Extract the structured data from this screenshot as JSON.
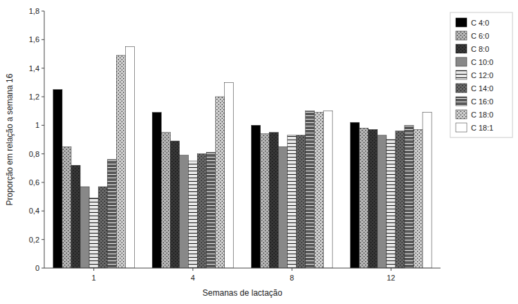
{
  "chart_data": {
    "type": "bar",
    "xlabel": "Semanas de lactação",
    "ylabel": "Proporção em relação a semana 16",
    "categories": [
      "1",
      "4",
      "8",
      "12"
    ],
    "series": [
      {
        "name": "C 4:0",
        "color": "#000000",
        "values": [
          1.25,
          1.09,
          1.0,
          1.02
        ]
      },
      {
        "name": "C 6:0",
        "color": "#b8b8b8",
        "values": [
          0.85,
          0.95,
          0.94,
          0.98
        ]
      },
      {
        "name": "C 8:0",
        "color": "#383838",
        "values": [
          0.72,
          0.89,
          0.95,
          0.97
        ]
      },
      {
        "name": "C 10:0",
        "color": "#888888",
        "values": [
          0.57,
          0.79,
          0.85,
          0.93
        ]
      },
      {
        "name": "C 12:0",
        "color": "#e8e8e8",
        "values": [
          0.49,
          0.75,
          0.93,
          0.9
        ]
      },
      {
        "name": "C 14:0",
        "color": "#686868",
        "values": [
          0.57,
          0.8,
          0.93,
          0.96
        ]
      },
      {
        "name": "C 16:0",
        "color": "#585858",
        "values": [
          0.76,
          0.81,
          1.1,
          1.0
        ]
      },
      {
        "name": "C 18:0",
        "color": "#d0d0d0",
        "values": [
          1.49,
          1.2,
          1.09,
          0.97
        ]
      },
      {
        "name": "C 18:1",
        "color": "#ffffff",
        "values": [
          1.55,
          1.3,
          1.1,
          1.09
        ]
      }
    ],
    "ylim": [
      0,
      1.8
    ],
    "yticks": [
      0,
      {
        "value": 0.2,
        "label": "0,2"
      },
      {
        "value": 0.4,
        "label": "0,4"
      },
      {
        "value": 0.6,
        "label": "0,6"
      },
      {
        "value": 0.8,
        "label": "0,8"
      },
      1,
      {
        "value": 1.2,
        "label": "1,2"
      },
      {
        "value": 1.4,
        "label": "1,4"
      },
      {
        "value": 1.6,
        "label": "1,6"
      },
      {
        "value": 1.8,
        "label": "1,8"
      }
    ],
    "grid": false,
    "legend": "right"
  }
}
